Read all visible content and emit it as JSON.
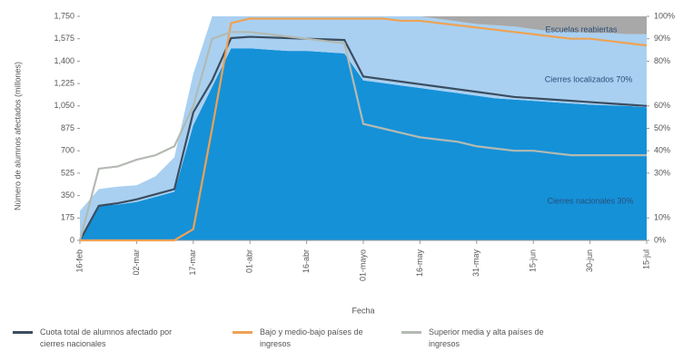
{
  "chart_data": {
    "type": "area",
    "ylabel": "Número de alumnos afectados (millones)",
    "xlabel": "Fecha",
    "categories": [
      "16-feb",
      null,
      null,
      "02-mar",
      null,
      null,
      "17-mar",
      null,
      null,
      "01-abr",
      null,
      null,
      "16-abr",
      null,
      null,
      "01-mayo",
      null,
      null,
      "16-may",
      null,
      null,
      "31-may",
      null,
      null,
      "15-jun",
      null,
      null,
      "30-jun",
      null,
      null,
      "15-jul"
    ],
    "ylim": [
      0,
      1750
    ],
    "yticks": [
      0,
      175,
      350,
      525,
      700,
      875,
      {
        "value": 1050,
        "label": "1,050"
      },
      {
        "value": 1225,
        "label": "1,225"
      },
      {
        "value": 1400,
        "label": "1,400"
      },
      {
        "value": 1575,
        "label": "1,575"
      },
      {
        "value": 1750,
        "label": "1,750"
      }
    ],
    "y2lim": [
      0,
      100
    ],
    "y2ticks": [
      {
        "value": 0,
        "label": "0%"
      },
      {
        "value": 10,
        "label": "10%"
      },
      {
        "value": 30,
        "label": "30%"
      },
      {
        "value": 40,
        "label": "40%"
      },
      {
        "value": 50,
        "label": "50%"
      },
      {
        "value": 60,
        "label": "60%"
      },
      {
        "value": 80,
        "label": "80%"
      },
      {
        "value": 90,
        "label": "90%"
      },
      {
        "value": 100,
        "label": "100%"
      }
    ],
    "areas": [
      {
        "label": "Cierres nacionales 30%",
        "color": "#1591d8",
        "values": [
          0,
          270,
          280,
          300,
          340,
          380,
          900,
          1200,
          1500,
          1500,
          1490,
          1480,
          1480,
          1470,
          1460,
          1250,
          1230,
          1210,
          1190,
          1170,
          1150,
          1130,
          1110,
          1100,
          1090,
          1080,
          1070,
          1060,
          1055,
          1050,
          1040
        ]
      },
      {
        "label": "Cierres localizados 70%",
        "color": "#a9d0f1",
        "values": [
          230,
          130,
          140,
          130,
          160,
          270,
          400,
          550,
          250,
          250,
          260,
          270,
          270,
          280,
          290,
          500,
          520,
          540,
          560,
          560,
          560,
          560,
          570,
          570,
          560,
          550,
          560,
          560,
          565,
          560,
          570
        ]
      },
      {
        "label": "Escuelas reabiertas",
        "color": "#a8a8a8",
        "values": [
          0,
          0,
          0,
          0,
          0,
          0,
          0,
          0,
          0,
          0,
          0,
          0,
          0,
          0,
          0,
          0,
          0,
          0,
          0,
          20,
          40,
          60,
          70,
          80,
          100,
          120,
          120,
          130,
          130,
          140,
          140
        ]
      }
    ],
    "series": [
      {
        "name": "Cuota total de alumnos afectado por cierres nacionales",
        "color": "#3b4d60",
        "values": [
          0,
          270,
          290,
          320,
          360,
          400,
          1000,
          1250,
          1580,
          1590,
          1585,
          1580,
          1575,
          1570,
          1565,
          1280,
          1260,
          1240,
          1220,
          1200,
          1180,
          1160,
          1140,
          1120,
          1110,
          1100,
          1090,
          1080,
          1070,
          1060,
          1050
        ]
      },
      {
        "name": "Bajo y medio-bajo países de ingresos",
        "color": "#eea254",
        "axis": "y2",
        "values": [
          0,
          0,
          0,
          0,
          0,
          0,
          5,
          50,
          97,
          99,
          99,
          99,
          99,
          99,
          99,
          99,
          99,
          98,
          98,
          97,
          96,
          95,
          94,
          93,
          92,
          91,
          90,
          90,
          89,
          88,
          87
        ]
      },
      {
        "name": "Superior media y alta países de ingresos",
        "color": "#b3bab2",
        "axis": "y2",
        "values": [
          0,
          32,
          33,
          36,
          38,
          42,
          60,
          90,
          93,
          93,
          92,
          91,
          90,
          89,
          88,
          52,
          50,
          48,
          46,
          45,
          44,
          42,
          41,
          40,
          40,
          39,
          38,
          38,
          38,
          38,
          38
        ]
      }
    ]
  }
}
